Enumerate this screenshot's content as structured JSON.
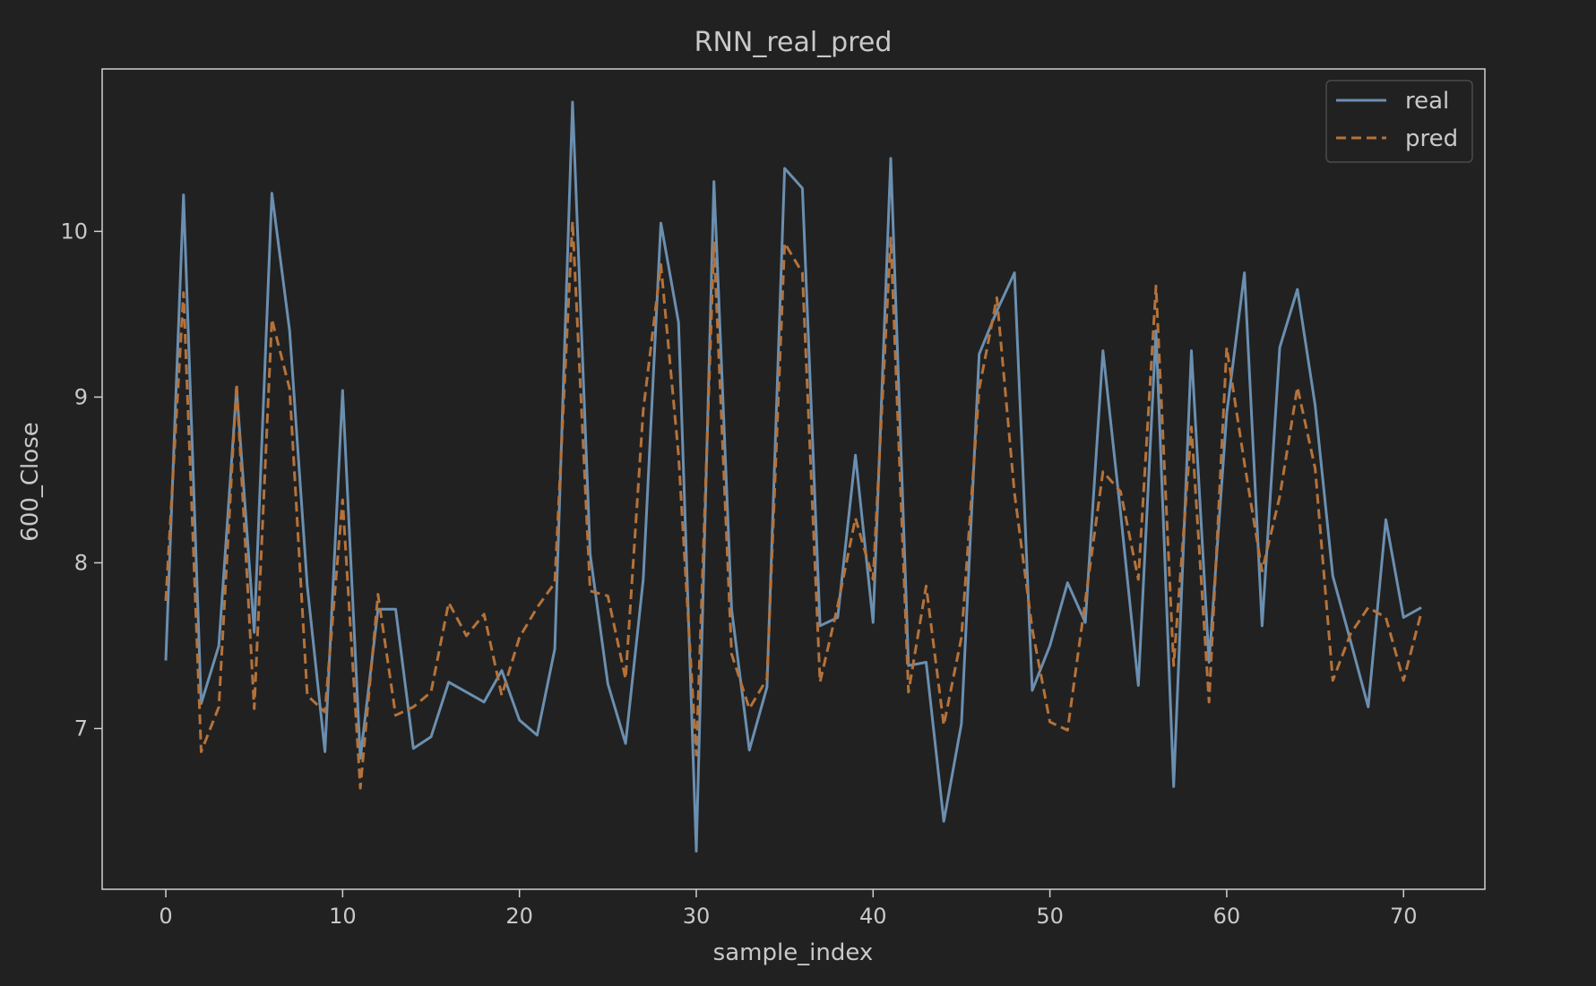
{
  "chart_data": {
    "type": "line",
    "title": "RNN_real_pred",
    "xlabel": "sample_index",
    "ylabel": "600_Close",
    "xlim": [
      -3.6,
      74.6
    ],
    "ylim": [
      6.03,
      10.98
    ],
    "x_ticks": [
      0,
      10,
      20,
      30,
      40,
      50,
      60,
      70
    ],
    "y_ticks": [
      7,
      8,
      9,
      10
    ],
    "grid": false,
    "legend_position": "upper right",
    "colors": {
      "background": "#212121",
      "axes": "#d0d0d0",
      "text": "#c9c9c9",
      "real": "#6b8fb0",
      "pred": "#b5723a"
    },
    "series": [
      {
        "name": "real",
        "style": "solid",
        "x": [
          0,
          1,
          2,
          3,
          4,
          5,
          6,
          7,
          8,
          9,
          10,
          11,
          12,
          13,
          14,
          15,
          16,
          17,
          18,
          19,
          20,
          21,
          22,
          23,
          24,
          25,
          26,
          27,
          28,
          29,
          30,
          31,
          32,
          33,
          34,
          35,
          36,
          37,
          38,
          39,
          40,
          41,
          42,
          43,
          44,
          45,
          46,
          47,
          48,
          49,
          50,
          51,
          52,
          53,
          54,
          55,
          56,
          57,
          58,
          59,
          60,
          61,
          62,
          63,
          64,
          65,
          66,
          67,
          68,
          69,
          70,
          71
        ],
        "values": [
          7.41,
          10.22,
          7.15,
          7.5,
          9.05,
          7.58,
          10.23,
          9.4,
          7.86,
          6.86,
          9.04,
          6.82,
          7.72,
          7.72,
          6.88,
          6.95,
          7.28,
          7.22,
          7.16,
          7.35,
          7.05,
          6.96,
          7.48,
          10.78,
          8.05,
          7.27,
          6.91,
          7.9,
          10.05,
          9.45,
          6.26,
          10.3,
          7.72,
          6.87,
          7.25,
          10.38,
          10.26,
          7.62,
          7.67,
          8.65,
          7.64,
          10.44,
          7.38,
          7.4,
          6.44,
          7.03,
          9.26,
          9.52,
          9.75,
          7.23,
          7.5,
          7.88,
          7.64,
          9.28,
          8.3,
          7.26,
          9.4,
          6.65,
          9.28,
          7.4,
          8.9,
          9.75,
          7.62,
          9.3,
          9.65,
          8.95,
          7.92,
          7.53,
          7.13,
          8.26,
          7.67,
          7.73
        ]
      },
      {
        "name": "pred",
        "style": "dashed",
        "x": [
          0,
          1,
          2,
          3,
          4,
          5,
          6,
          7,
          8,
          9,
          10,
          11,
          12,
          13,
          14,
          15,
          16,
          17,
          18,
          19,
          20,
          21,
          22,
          23,
          24,
          25,
          26,
          27,
          28,
          29,
          30,
          31,
          32,
          33,
          34,
          35,
          36,
          37,
          38,
          39,
          40,
          41,
          42,
          43,
          44,
          45,
          46,
          47,
          48,
          49,
          50,
          51,
          52,
          53,
          54,
          55,
          56,
          57,
          58,
          59,
          60,
          61,
          62,
          63,
          64,
          65,
          66,
          67,
          68,
          69,
          70,
          71
        ],
        "values": [
          7.77,
          9.63,
          6.86,
          7.13,
          9.08,
          7.12,
          9.47,
          9.05,
          7.2,
          7.1,
          8.38,
          6.64,
          7.81,
          7.08,
          7.13,
          7.22,
          7.76,
          7.56,
          7.69,
          7.2,
          7.55,
          7.73,
          7.88,
          10.06,
          7.83,
          7.8,
          7.3,
          8.92,
          9.8,
          8.65,
          6.84,
          9.93,
          7.45,
          7.12,
          7.3,
          9.93,
          9.75,
          7.28,
          7.74,
          8.27,
          7.9,
          9.96,
          7.22,
          7.86,
          7.02,
          7.55,
          9.05,
          9.6,
          8.42,
          7.6,
          7.04,
          6.99,
          7.77,
          8.55,
          8.43,
          7.9,
          9.67,
          7.38,
          8.82,
          7.16,
          9.3,
          8.6,
          7.95,
          8.4,
          9.06,
          8.57,
          7.29,
          7.57,
          7.73,
          7.67,
          7.29,
          7.7
        ]
      }
    ]
  }
}
